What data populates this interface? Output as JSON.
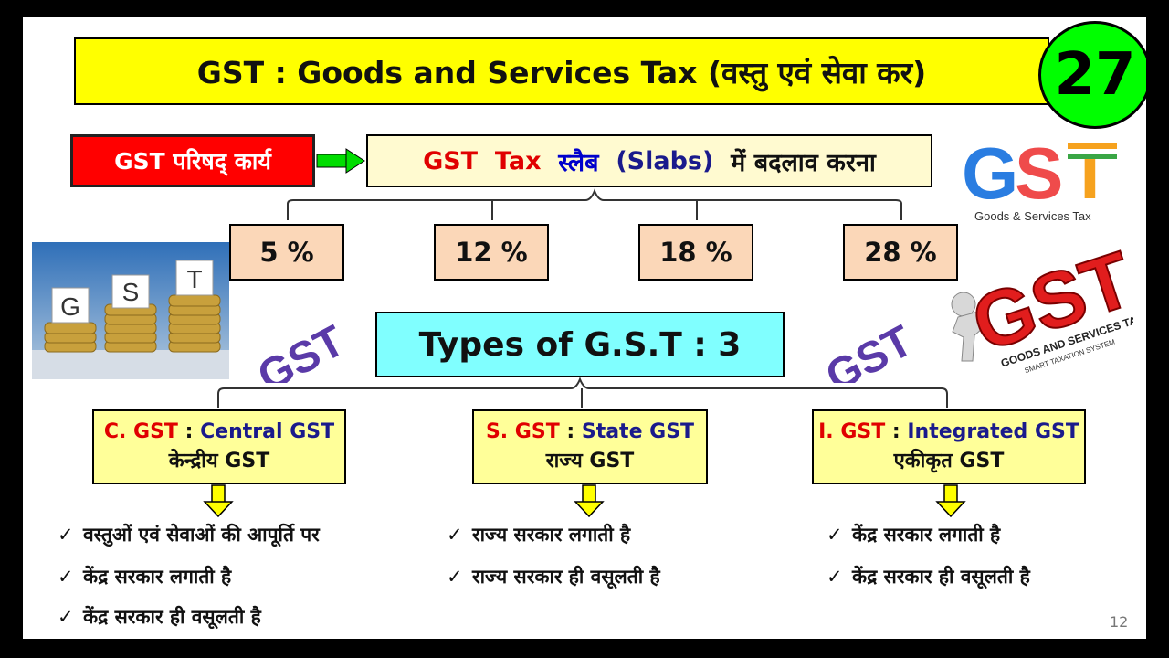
{
  "title": "GST : Goods and Services Tax (वस्तु एवं सेवा कर)",
  "episode_number": "27",
  "council_label": "GST परिषद् कार्य",
  "slab_heading": {
    "part1": "GST",
    "part2": "Tax",
    "part3": "स्लैब",
    "part4": "(Slabs)",
    "part5": "में बदलाव करना"
  },
  "slabs": [
    "5 %",
    "12 %",
    "18 %",
    "28 %"
  ],
  "types_heading": "Types of G.S.T  :  3",
  "gst_types": [
    {
      "abbr": "C. GST",
      "sep": " : ",
      "name": "Central GST",
      "hindi": "केन्द्रीय  GST",
      "points": [
        "वस्तुओं एवं सेवाओं की आपूर्ति पर",
        "केंद्र सरकार लगाती है",
        "केंद्र सरकार ही वसूलती है"
      ]
    },
    {
      "abbr": "S. GST",
      "sep": " : ",
      "name": "State GST",
      "hindi": "राज्य  GST",
      "points": [
        "राज्य सरकार लगाती है",
        "राज्य सरकार ही वसूलती है"
      ]
    },
    {
      "abbr": "I. GST",
      "sep": " : ",
      "name": "Integrated GST",
      "hindi": "एकीकृत  GST",
      "points": [
        "केंद्र सरकार लगाती है",
        "केंद्र सरकार ही वसूलती है"
      ]
    }
  ],
  "check_mark": "✓",
  "logo_gst": "GST",
  "logo_caption": "Goods & Services Tax",
  "coins_letters": [
    "G",
    "S",
    "T"
  ],
  "watermark_text": "GST",
  "badge_logo": {
    "text": "GST",
    "ring": "GOODS AND SERVICES TAX",
    "tag": "SMART TAXATION SYSTEM"
  },
  "page_number": "12",
  "colors": {
    "title_bg": "#ffff00",
    "number_bg": "#00ff00",
    "council_bg": "#ff0000",
    "slab_bg": "#fbd7b8",
    "types_bg": "#80ffff",
    "type_box_bg": "#ffff99",
    "arrow_green": "#00dd00",
    "arrow_yellow": "#ffff00"
  }
}
